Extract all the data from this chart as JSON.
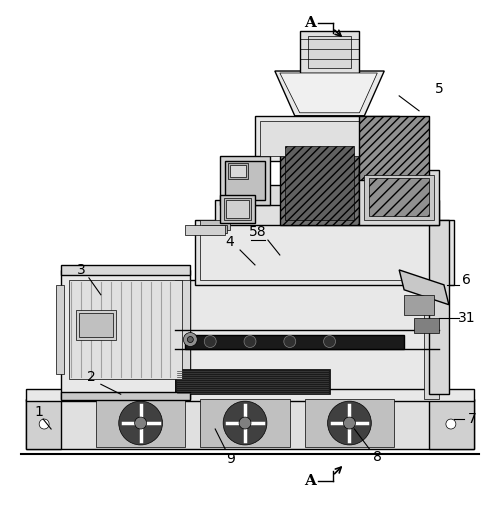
{
  "background_color": "#ffffff",
  "line_color": "#000000",
  "fig_width": 5.0,
  "fig_height": 5.05,
  "dpi": 100,
  "gray_light": "#e8e8e8",
  "gray_mid": "#c8c8c8",
  "gray_dark": "#909090",
  "gray_darker": "#606060",
  "black": "#1a1a1a",
  "white": "#ffffff"
}
